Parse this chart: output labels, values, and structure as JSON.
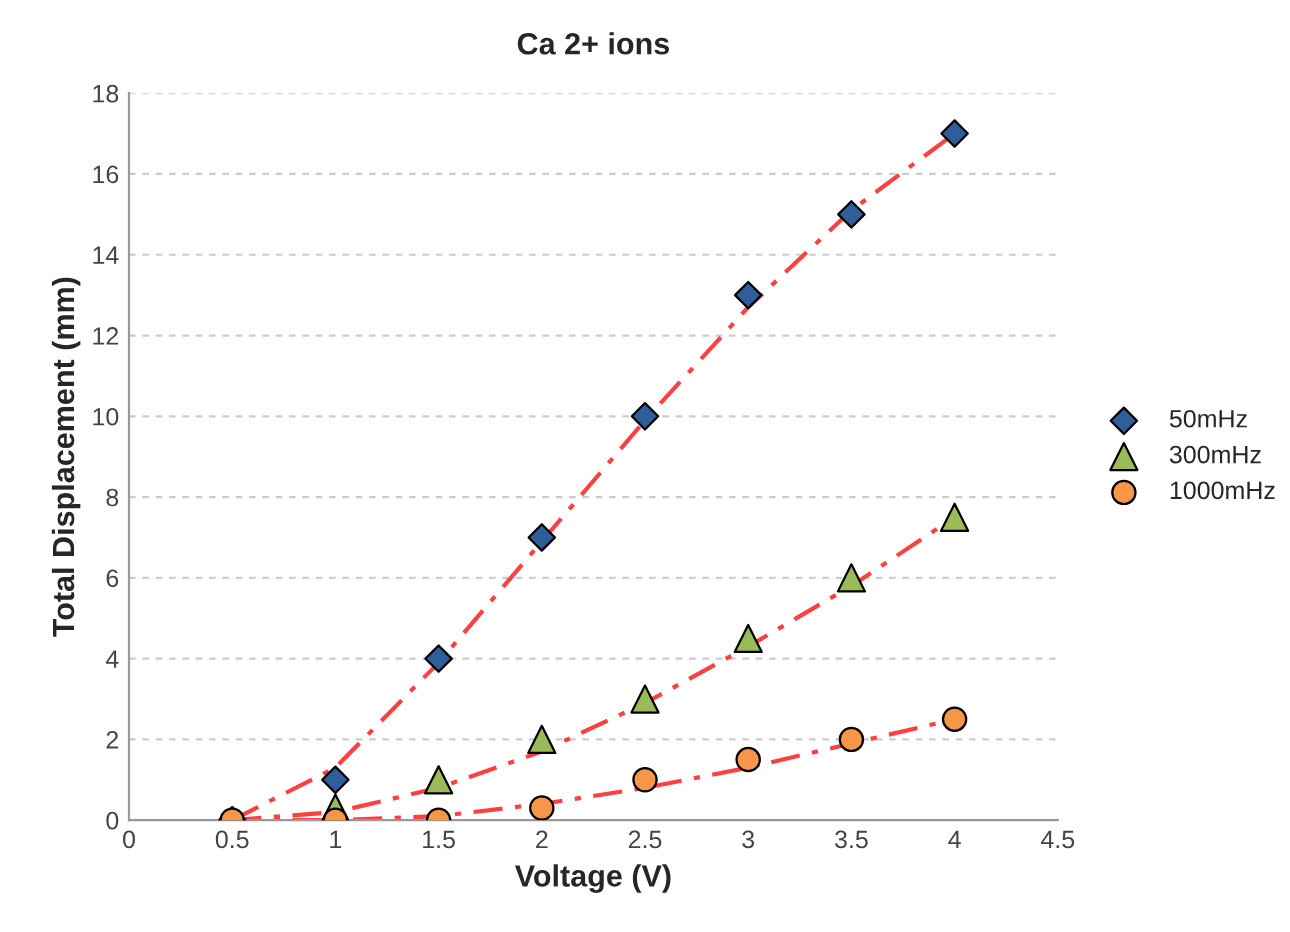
{
  "chart_data": {
    "type": "scatter",
    "title": "Ca 2+ ions",
    "xlabel": "Voltage (V)",
    "ylabel": "Total Displacement (mm)",
    "x": [
      0.5,
      1,
      1.5,
      2,
      2.5,
      3,
      3.5,
      4
    ],
    "series": [
      {
        "name": "50mHz",
        "color": "#2f5f9a",
        "marker": "diamond",
        "values": [
          0,
          1,
          4,
          7,
          10,
          13,
          15,
          17
        ]
      },
      {
        "name": "300mHz",
        "color": "#9bbb59",
        "marker": "triangle",
        "values": [
          null,
          0.3,
          1,
          2,
          3,
          4.5,
          6,
          7.5
        ]
      },
      {
        "name": "1000mHz",
        "color": "#f79646",
        "marker": "circle",
        "values": [
          0,
          0,
          0,
          0.3,
          1,
          1.5,
          2,
          2.5
        ]
      },
      {
        "type": "line",
        "color": "#ff4040",
        "line_style": "dashed",
        "values": [
          0,
          1.3,
          3.9,
          6.9,
          9.9,
          12.7,
          15.1,
          17.0
        ]
      },
      {
        "type": "line",
        "color": "#ff4040",
        "line_style": "dashed",
        "values": [
          0,
          0.2,
          0.8,
          1.7,
          2.9,
          4.3,
          5.8,
          7.5
        ]
      },
      {
        "type": "line",
        "color": "#ff4040",
        "line_style": "dashed",
        "values": [
          0,
          0,
          0.1,
          0.4,
          0.8,
          1.3,
          1.9,
          2.5
        ]
      }
    ],
    "xlim": [
      0,
      4.5
    ],
    "xticks": [
      0,
      0.5,
      1,
      1.5,
      2,
      2.5,
      3,
      3.5,
      4,
      4.5
    ],
    "ylim": [
      0,
      18
    ],
    "yticks": [
      0,
      2,
      4,
      6,
      8,
      10,
      12,
      14,
      16,
      18
    ],
    "grid": "y",
    "legend": "right"
  }
}
